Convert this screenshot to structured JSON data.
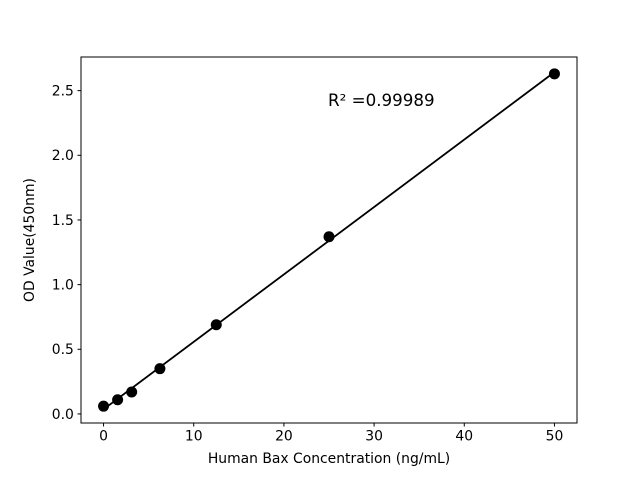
{
  "figure": {
    "background": "#ffffff"
  },
  "chart_data": {
    "type": "scatter",
    "title": "",
    "xlabel": "Human Bax Concentration (ng/mL)",
    "ylabel": "OD Value(450nm)",
    "annotation": "R² =0.99989",
    "series": [
      {
        "name": "linear-fit-line",
        "type": "line",
        "x": [
          0,
          50
        ],
        "y": [
          0.036,
          2.643
        ]
      },
      {
        "name": "standard-points",
        "type": "scatter",
        "x": [
          0,
          1.56,
          3.12,
          6.25,
          12.5,
          25,
          50
        ],
        "y": [
          0.06,
          0.11,
          0.17,
          0.35,
          0.69,
          1.37,
          2.63
        ]
      }
    ],
    "xlim": [
      -2.5,
      52.5
    ],
    "ylim": [
      -0.07,
      2.76
    ],
    "xticks": {
      "values": [
        0,
        10,
        20,
        30,
        40,
        50
      ],
      "labels": [
        "0",
        "10",
        "20",
        "30",
        "40",
        "50"
      ]
    },
    "yticks": {
      "values": [
        0,
        0.5,
        1.0,
        1.5,
        2.0,
        2.5
      ],
      "labels": [
        "0.0",
        "0.5",
        "1.0",
        "1.5",
        "2.0",
        "2.5"
      ]
    },
    "grid": false,
    "legend": "none",
    "colors": {
      "points": "#000000",
      "line": "#000000",
      "axes": "#000000",
      "text": "#000000",
      "background": "#ffffff"
    }
  }
}
